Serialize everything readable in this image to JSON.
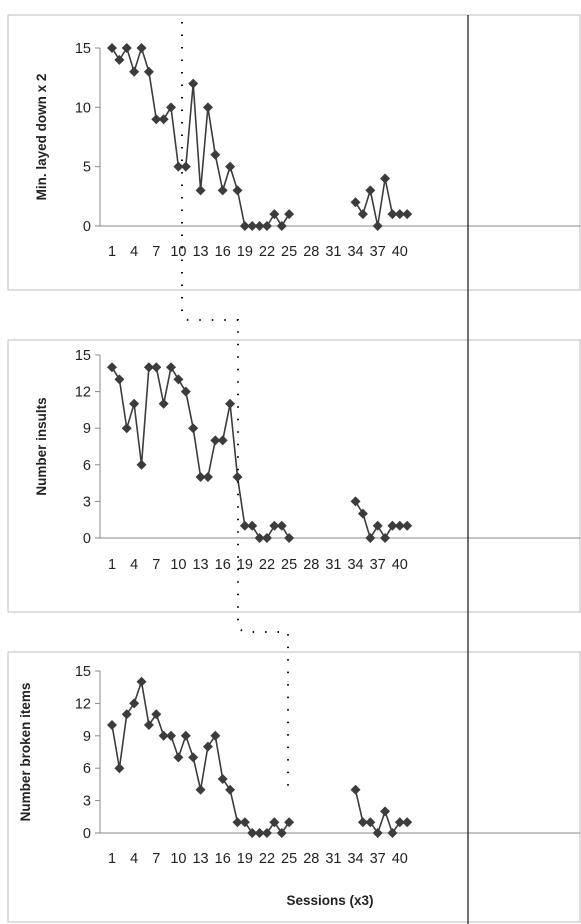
{
  "chart_data": [
    {
      "type": "line",
      "ylabel": "Min. layed down x 2",
      "xlabel": "",
      "ylim": [
        0,
        15
      ],
      "yticks": [
        "0",
        "5",
        "10",
        "15"
      ],
      "xticks": [
        "1",
        "4",
        "7",
        "10",
        "13",
        "16",
        "19",
        "22",
        "25",
        "28",
        "31",
        "34",
        "37",
        "40"
      ],
      "series": [
        {
          "x": [
            1,
            2,
            3,
            4,
            5,
            6,
            7,
            8,
            9,
            10,
            11,
            12,
            13,
            14,
            15,
            16,
            17,
            18,
            19,
            20,
            21,
            22,
            23,
            24,
            25
          ],
          "y": [
            15,
            14,
            15,
            13,
            15,
            13,
            9,
            9,
            10,
            5,
            5,
            12,
            3,
            10,
            6,
            3,
            5,
            3,
            0,
            0,
            0,
            0,
            1,
            0,
            1
          ]
        },
        {
          "x": [
            34,
            35,
            36,
            37,
            38,
            39,
            40,
            41
          ],
          "y": [
            2,
            1,
            3,
            0,
            4,
            1,
            1,
            1
          ]
        }
      ]
    },
    {
      "type": "line",
      "ylabel": "Number insults",
      "xlabel": "",
      "ylim": [
        0,
        15
      ],
      "yticks": [
        "0",
        "3",
        "6",
        "9",
        "12",
        "15"
      ],
      "xticks": [
        "1",
        "4",
        "7",
        "10",
        "13",
        "16",
        "19",
        "22",
        "25",
        "28",
        "31",
        "34",
        "37",
        "40"
      ],
      "series": [
        {
          "x": [
            1,
            2,
            3,
            4,
            5,
            6,
            7,
            8,
            9,
            10,
            11,
            12,
            13,
            14,
            15,
            16,
            17,
            18,
            19,
            20,
            21,
            22,
            23,
            24,
            25
          ],
          "y": [
            14,
            13,
            9,
            11,
            6,
            14,
            14,
            11,
            14,
            13,
            12,
            9,
            5,
            5,
            8,
            8,
            11,
            5,
            1,
            1,
            0,
            0,
            1,
            1,
            0
          ]
        },
        {
          "x": [
            34,
            35,
            36,
            37,
            38,
            39,
            40,
            41
          ],
          "y": [
            3,
            2,
            0,
            1,
            0,
            1,
            1,
            1
          ]
        }
      ]
    },
    {
      "type": "line",
      "ylabel": "Number broken items",
      "xlabel": "Sessions (x3)",
      "ylim": [
        0,
        15
      ],
      "yticks": [
        "0",
        "3",
        "6",
        "9",
        "12",
        "15"
      ],
      "xticks": [
        "1",
        "4",
        "7",
        "10",
        "13",
        "16",
        "19",
        "22",
        "25",
        "28",
        "31",
        "34",
        "37",
        "40"
      ],
      "series": [
        {
          "x": [
            1,
            2,
            3,
            4,
            5,
            6,
            7,
            8,
            9,
            10,
            11,
            12,
            13,
            14,
            15,
            16,
            17,
            18,
            19,
            20,
            21,
            22,
            23,
            24,
            25
          ],
          "y": [
            10,
            6,
            11,
            12,
            14,
            10,
            11,
            9,
            9,
            7,
            9,
            7,
            4,
            8,
            9,
            5,
            4,
            1,
            1,
            0,
            0,
            0,
            1,
            0,
            1
          ]
        },
        {
          "x": [
            34,
            35,
            36,
            37,
            38,
            39,
            40,
            41
          ],
          "y": [
            4,
            1,
            1,
            0,
            2,
            0,
            1,
            1
          ]
        }
      ]
    }
  ],
  "colors": {
    "line": "#3c3c3c",
    "marker": "#3c3c3c",
    "frame": "#bdbdbd",
    "axis": "#888888"
  }
}
